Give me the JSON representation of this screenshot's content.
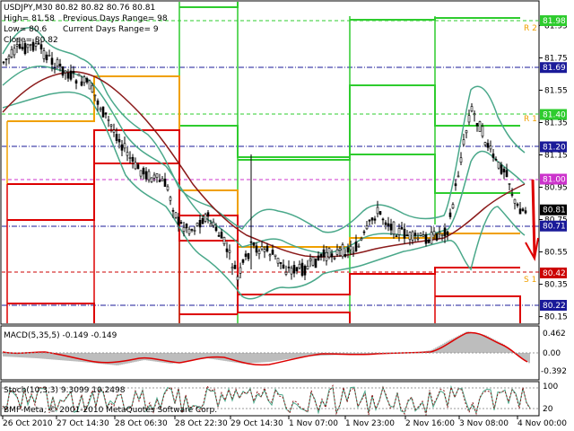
{
  "info": {
    "symbol_line": "USDJPY,M30  80.82 80.82 80.76 80.81",
    "high": "High= 81.58",
    "prev_range": "Previous Days Range= 98",
    "low": "Low= 80.6",
    "curr_range": "Current Days Range= 9",
    "close": "Close= 80.82"
  },
  "price_axis": {
    "ticks": [
      "81.95",
      "81.75",
      "81.55",
      "81.35",
      "81.15",
      "80.95",
      "80.75",
      "80.55",
      "80.35",
      "80.15"
    ],
    "tags": [
      {
        "label": "81.98",
        "color": "#2ecc2e",
        "price": 81.98
      },
      {
        "label": "81.69",
        "color": "#1a1a99",
        "price": 81.69
      },
      {
        "label": "81.40",
        "color": "#2ecc2e",
        "price": 81.4
      },
      {
        "label": "81.20",
        "color": "#1a1a99",
        "price": 81.2
      },
      {
        "label": "81.00",
        "color": "#cc33cc",
        "price": 81.0
      },
      {
        "label": "80.81",
        "color": "#000000",
        "price": 80.81
      },
      {
        "label": "80.71",
        "color": "#1a1a99",
        "price": 80.71
      },
      {
        "label": "80.42",
        "color": "#cc0000",
        "price": 80.42
      },
      {
        "label": "80.22",
        "color": "#1a1a99",
        "price": 80.22
      }
    ]
  },
  "pivots": {
    "r2": "R 2",
    "r1": "R 1",
    "s1": "S 1"
  },
  "macd": {
    "label": "MACD(5,35,5) -0.149 -0.149",
    "ticks": [
      "0.462",
      "0.00",
      "-0.392"
    ]
  },
  "stoch": {
    "label": "Stoch(10,3,3) 9.3099 10.2498",
    "ticks": [
      "100",
      "20"
    ]
  },
  "time_axis": [
    "26 Oct 2010",
    "27 Oct 14:30",
    "28 Oct 06:30",
    "28 Oct 22:30",
    "29 Oct 14:30",
    "1 Nov 07:00",
    "1 Nov 23:00",
    "2 Nov 16:00",
    "3 Nov 08:00",
    "4 Nov 00:00"
  ],
  "copyright": "BMF-Meta, © 2001-2010 MetaQuotes Software Corp.",
  "colors": {
    "green": "#2ecc2e",
    "red": "#dd0000",
    "orange": "#f0a000",
    "navy": "#1a1a99",
    "teal": "#4aa88a",
    "maroon": "#8b1a1a"
  }
}
